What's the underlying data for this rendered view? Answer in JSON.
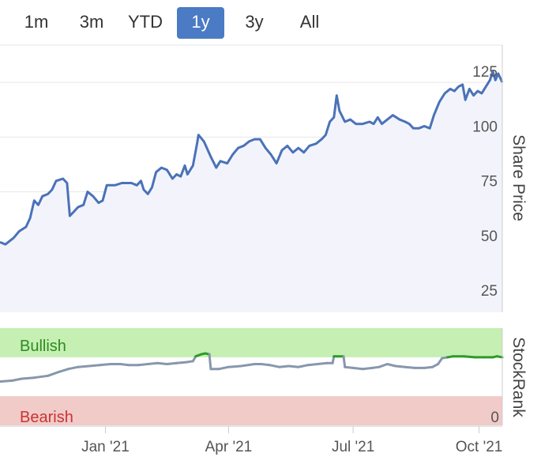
{
  "range_selector": {
    "buttons": [
      {
        "label": "1m",
        "active": false
      },
      {
        "label": "3m",
        "active": false
      },
      {
        "label": "YTD",
        "active": false
      },
      {
        "label": "1y",
        "active": true
      },
      {
        "label": "3y",
        "active": false
      },
      {
        "label": "All",
        "active": false
      }
    ]
  },
  "colors": {
    "price_line": "#4a72b8",
    "price_fill": "#f3f4fb",
    "bullish_band": "#c6efb3",
    "bearish_band": "#f0cbc8",
    "bullish_text": "#2e8b22",
    "bearish_text": "#cc3333",
    "rank_neutral": "#8797ad",
    "rank_bullish": "#2e9a27",
    "active_button": "#4a7bc4"
  },
  "chart_data": [
    {
      "type": "area",
      "ylabel": "Share Price",
      "ylim": [
        20,
        142
      ],
      "yticks": [
        25,
        50,
        75,
        100,
        125
      ],
      "grid": true,
      "x_range": [
        "2020-10-16",
        "2021-10-18"
      ],
      "x_ticks": [
        {
          "date": "2021-01-01",
          "label": "Jan '21"
        },
        {
          "date": "2021-04-01",
          "label": "Apr '21"
        },
        {
          "date": "2021-07-01",
          "label": "Jul '21"
        },
        {
          "date": "2021-10-01",
          "label": "Oct '21"
        }
      ],
      "series": [
        {
          "points": [
            [
              "2020-10-16",
              52
            ],
            [
              "2020-10-20",
              51
            ],
            [
              "2020-10-26",
              54
            ],
            [
              "2020-10-30",
              57
            ],
            [
              "2020-11-04",
              59
            ],
            [
              "2020-11-07",
              63
            ],
            [
              "2020-11-10",
              71
            ],
            [
              "2020-11-13",
              69
            ],
            [
              "2020-11-16",
              73
            ],
            [
              "2020-11-20",
              74
            ],
            [
              "2020-11-23",
              76
            ],
            [
              "2020-11-26",
              80
            ],
            [
              "2020-12-01",
              81
            ],
            [
              "2020-12-04",
              79
            ],
            [
              "2020-12-06",
              64
            ],
            [
              "2020-12-09",
              66
            ],
            [
              "2020-12-12",
              68
            ],
            [
              "2020-12-16",
              69
            ],
            [
              "2020-12-19",
              75
            ],
            [
              "2020-12-23",
              73
            ],
            [
              "2020-12-27",
              70
            ],
            [
              "2020-12-30",
              71
            ],
            [
              "2021-01-02",
              78
            ],
            [
              "2021-01-08",
              78
            ],
            [
              "2021-01-13",
              79
            ],
            [
              "2021-01-20",
              79
            ],
            [
              "2021-01-24",
              78
            ],
            [
              "2021-01-27",
              80
            ],
            [
              "2021-01-29",
              76
            ],
            [
              "2021-02-01",
              74
            ],
            [
              "2021-02-04",
              77
            ],
            [
              "2021-02-07",
              84
            ],
            [
              "2021-02-11",
              86
            ],
            [
              "2021-02-15",
              85
            ],
            [
              "2021-02-19",
              81
            ],
            [
              "2021-02-22",
              83
            ],
            [
              "2021-02-25",
              82
            ],
            [
              "2021-02-28",
              87
            ],
            [
              "2021-03-02",
              83
            ],
            [
              "2021-03-06",
              87
            ],
            [
              "2021-03-09",
              97
            ],
            [
              "2021-03-10",
              101
            ],
            [
              "2021-03-14",
              98
            ],
            [
              "2021-03-19",
              91
            ],
            [
              "2021-03-23",
              86
            ],
            [
              "2021-03-26",
              89
            ],
            [
              "2021-03-31",
              88
            ],
            [
              "2021-04-04",
              92
            ],
            [
              "2021-04-08",
              95
            ],
            [
              "2021-04-12",
              96
            ],
            [
              "2021-04-16",
              98
            ],
            [
              "2021-04-20",
              99
            ],
            [
              "2021-04-24",
              99
            ],
            [
              "2021-04-28",
              95
            ],
            [
              "2021-05-02",
              92
            ],
            [
              "2021-05-06",
              88
            ],
            [
              "2021-05-10",
              94
            ],
            [
              "2021-05-14",
              96
            ],
            [
              "2021-05-18",
              93
            ],
            [
              "2021-05-22",
              95
            ],
            [
              "2021-05-26",
              93
            ],
            [
              "2021-05-30",
              96
            ],
            [
              "2021-06-04",
              97
            ],
            [
              "2021-06-08",
              99
            ],
            [
              "2021-06-11",
              101
            ],
            [
              "2021-06-14",
              107
            ],
            [
              "2021-06-17",
              109
            ],
            [
              "2021-06-19",
              119
            ],
            [
              "2021-06-21",
              112
            ],
            [
              "2021-06-25",
              107
            ],
            [
              "2021-06-29",
              108
            ],
            [
              "2021-07-03",
              106
            ],
            [
              "2021-07-08",
              106
            ],
            [
              "2021-07-13",
              107
            ],
            [
              "2021-07-16",
              106
            ],
            [
              "2021-07-19",
              109
            ],
            [
              "2021-07-22",
              106
            ],
            [
              "2021-07-26",
              108
            ],
            [
              "2021-07-30",
              110
            ],
            [
              "2021-08-04",
              108
            ],
            [
              "2021-08-08",
              107
            ],
            [
              "2021-08-11",
              106
            ],
            [
              "2021-08-14",
              104
            ],
            [
              "2021-08-18",
              104
            ],
            [
              "2021-08-22",
              105
            ],
            [
              "2021-08-26",
              104
            ],
            [
              "2021-08-29",
              110
            ],
            [
              "2021-09-02",
              116
            ],
            [
              "2021-09-06",
              120
            ],
            [
              "2021-09-10",
              122
            ],
            [
              "2021-09-13",
              121
            ],
            [
              "2021-09-16",
              123
            ],
            [
              "2021-09-19",
              124
            ],
            [
              "2021-09-21",
              117
            ],
            [
              "2021-09-24",
              122
            ],
            [
              "2021-09-27",
              119
            ],
            [
              "2021-09-30",
              121
            ],
            [
              "2021-10-03",
              120
            ],
            [
              "2021-10-06",
              123
            ],
            [
              "2021-10-09",
              126
            ],
            [
              "2021-10-11",
              130
            ],
            [
              "2021-10-13",
              126
            ],
            [
              "2021-10-15",
              129
            ],
            [
              "2021-10-18",
              125
            ]
          ]
        }
      ]
    },
    {
      "type": "line",
      "ylabel": "StockRank",
      "ylim": [
        0,
        100
      ],
      "yticks": [
        0
      ],
      "bands": [
        {
          "label": "Bullish",
          "from": 70,
          "to": 100
        },
        {
          "label": "Bearish",
          "from": 0,
          "to": 30
        }
      ],
      "series": [
        {
          "points": [
            [
              "2020-10-16",
              45
            ],
            [
              "2020-10-25",
              46
            ],
            [
              "2020-11-01",
              48
            ],
            [
              "2020-11-10",
              49
            ],
            [
              "2020-11-20",
              51
            ],
            [
              "2020-11-28",
              55
            ],
            [
              "2020-12-05",
              58
            ],
            [
              "2020-12-12",
              60
            ],
            [
              "2020-12-20",
              61
            ],
            [
              "2020-12-28",
              62
            ],
            [
              "2021-01-05",
              63
            ],
            [
              "2021-01-12",
              63
            ],
            [
              "2021-01-18",
              62
            ],
            [
              "2021-01-25",
              62
            ],
            [
              "2021-02-01",
              63
            ],
            [
              "2021-02-08",
              64
            ],
            [
              "2021-02-15",
              63
            ],
            [
              "2021-02-22",
              64
            ],
            [
              "2021-03-01",
              65
            ],
            [
              "2021-03-06",
              66
            ],
            [
              "2021-03-08",
              71
            ],
            [
              "2021-03-12",
              73
            ],
            [
              "2021-03-15",
              74
            ],
            [
              "2021-03-18",
              73
            ],
            [
              "2021-03-19",
              58
            ],
            [
              "2021-03-25",
              58
            ],
            [
              "2021-04-01",
              60
            ],
            [
              "2021-04-10",
              61
            ],
            [
              "2021-04-20",
              63
            ],
            [
              "2021-04-25",
              63
            ],
            [
              "2021-05-01",
              62
            ],
            [
              "2021-05-08",
              60
            ],
            [
              "2021-05-15",
              61
            ],
            [
              "2021-05-22",
              60
            ],
            [
              "2021-05-29",
              62
            ],
            [
              "2021-06-05",
              63
            ],
            [
              "2021-06-12",
              64
            ],
            [
              "2021-06-16",
              64
            ],
            [
              "2021-06-17",
              71
            ],
            [
              "2021-06-24",
              71
            ],
            [
              "2021-06-25",
              60
            ],
            [
              "2021-07-01",
              59
            ],
            [
              "2021-07-08",
              58
            ],
            [
              "2021-07-15",
              59
            ],
            [
              "2021-07-20",
              60
            ],
            [
              "2021-07-26",
              63
            ],
            [
              "2021-08-01",
              61
            ],
            [
              "2021-08-08",
              60
            ],
            [
              "2021-08-15",
              59
            ],
            [
              "2021-08-22",
              59
            ],
            [
              "2021-08-28",
              60
            ],
            [
              "2021-09-01",
              63
            ],
            [
              "2021-09-04",
              69
            ],
            [
              "2021-09-08",
              70
            ],
            [
              "2021-09-12",
              71
            ],
            [
              "2021-09-20",
              71
            ],
            [
              "2021-09-28",
              70
            ],
            [
              "2021-10-05",
              70
            ],
            [
              "2021-10-11",
              70
            ],
            [
              "2021-10-14",
              71
            ],
            [
              "2021-10-18",
              70
            ]
          ]
        }
      ]
    }
  ]
}
